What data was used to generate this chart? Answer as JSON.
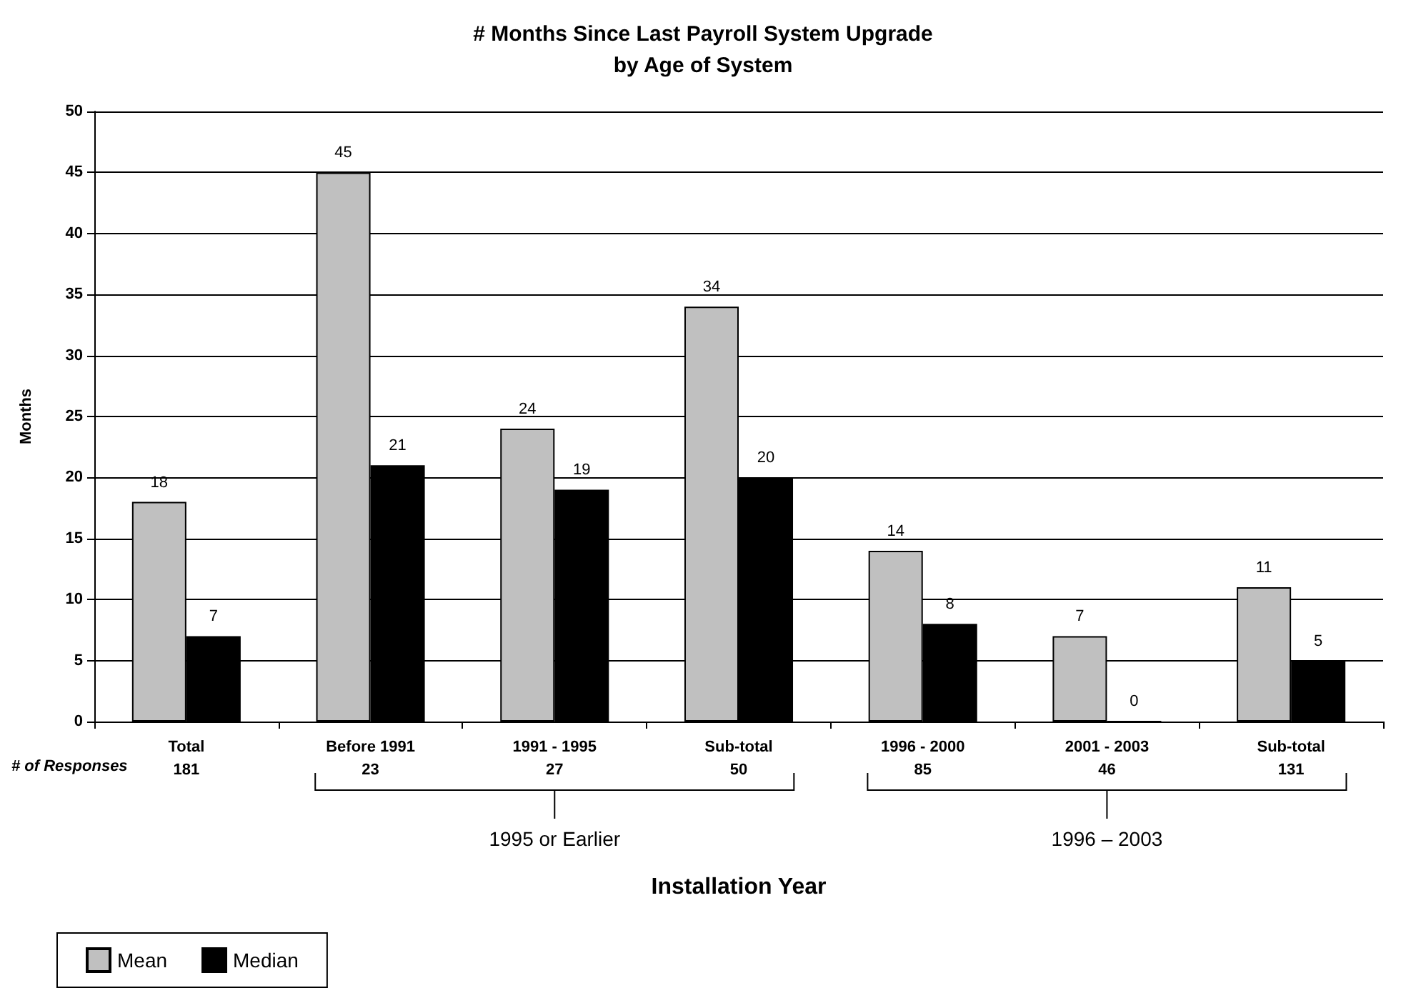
{
  "chart_data": {
    "type": "bar",
    "title": "# Months Since Last Payroll System Upgrade\nby Age of System",
    "xlabel": "Installation Year",
    "ylabel": "Months",
    "categories": [
      "Total\n181",
      "Before 1991\n23",
      "1991 - 1995\n27",
      "Sub-total\n50",
      "1996 - 2000\n85",
      "2001 - 2003\n46",
      "Sub-total\n131"
    ],
    "series": [
      {
        "name": "Mean",
        "color": "#c0c0c0",
        "values": [
          18,
          45,
          24,
          34,
          14,
          7,
          11
        ]
      },
      {
        "name": "Median",
        "color": "#000000",
        "values": [
          7,
          21,
          19,
          20,
          8,
          0,
          5
        ]
      }
    ],
    "ylim": [
      0,
      50
    ],
    "yticks": [
      0,
      5,
      10,
      15,
      20,
      25,
      30,
      35,
      40,
      45,
      50
    ],
    "grid": "y",
    "legend": "bottom left",
    "data_labels": true,
    "annotations": [
      "# of Responses",
      "1995 or Earlier",
      "1996 – 2003"
    ]
  }
}
